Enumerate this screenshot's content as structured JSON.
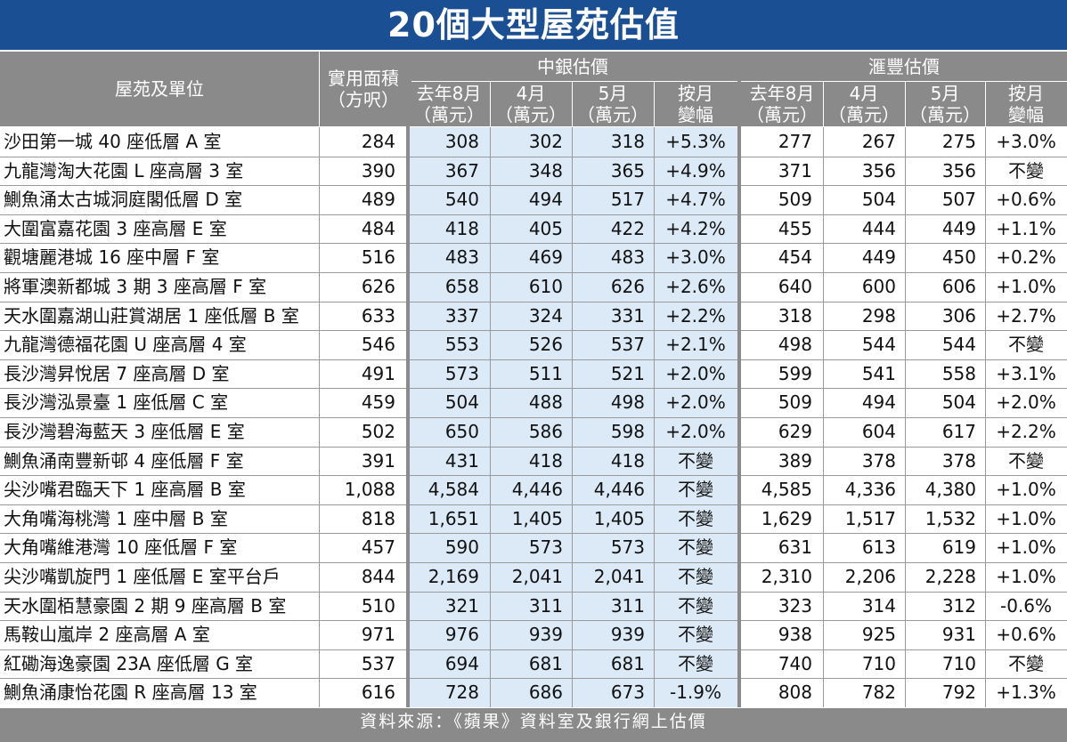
{
  "title": "20個大型屋苑估值",
  "headers": {
    "estate": "屋苑及單位",
    "area_line1": "實用面積",
    "area_line2": "（方呎）",
    "boc_group": "中銀估價",
    "hsbc_group": "滙豐估價",
    "sub": [
      {
        "l1": "去年8月",
        "l2": "（萬元）"
      },
      {
        "l1": "4月",
        "l2": "（萬元）"
      },
      {
        "l1": "5月",
        "l2": "（萬元）"
      },
      {
        "l1": "按月",
        "l2": "變幅"
      },
      {
        "l1": "去年8月",
        "l2": "（萬元）"
      },
      {
        "l1": "4月",
        "l2": "（萬元）"
      },
      {
        "l1": "5月",
        "l2": "（萬元）"
      },
      {
        "l1": "按月",
        "l2": "變幅"
      }
    ]
  },
  "rows": [
    {
      "name": "沙田第一城 40 座低層 A 室",
      "area": "284",
      "boc_aug": "308",
      "boc_apr": "302",
      "boc_may": "318",
      "boc_chg": "+5.3%",
      "hsbc_aug": "277",
      "hsbc_apr": "267",
      "hsbc_may": "275",
      "hsbc_chg": "+3.0%"
    },
    {
      "name": "九龍灣淘大花園 L 座高層 3 室",
      "area": "390",
      "boc_aug": "367",
      "boc_apr": "348",
      "boc_may": "365",
      "boc_chg": "+4.9%",
      "hsbc_aug": "371",
      "hsbc_apr": "356",
      "hsbc_may": "356",
      "hsbc_chg": "不變"
    },
    {
      "name": "鰂魚涌太古城洞庭閣低層 D 室",
      "area": "489",
      "boc_aug": "540",
      "boc_apr": "494",
      "boc_may": "517",
      "boc_chg": "+4.7%",
      "hsbc_aug": "509",
      "hsbc_apr": "504",
      "hsbc_may": "507",
      "hsbc_chg": "+0.6%"
    },
    {
      "name": "大圍富嘉花園 3 座高層 E 室",
      "area": "484",
      "boc_aug": "418",
      "boc_apr": "405",
      "boc_may": "422",
      "boc_chg": "+4.2%",
      "hsbc_aug": "455",
      "hsbc_apr": "444",
      "hsbc_may": "449",
      "hsbc_chg": "+1.1%"
    },
    {
      "name": "觀塘麗港城 16 座中層 F 室",
      "area": "516",
      "boc_aug": "483",
      "boc_apr": "469",
      "boc_may": "483",
      "boc_chg": "+3.0%",
      "hsbc_aug": "454",
      "hsbc_apr": "449",
      "hsbc_may": "450",
      "hsbc_chg": "+0.2%"
    },
    {
      "name": "將軍澳新都城 3 期 3 座高層 F 室",
      "area": "626",
      "boc_aug": "658",
      "boc_apr": "610",
      "boc_may": "626",
      "boc_chg": "+2.6%",
      "hsbc_aug": "640",
      "hsbc_apr": "600",
      "hsbc_may": "606",
      "hsbc_chg": "+1.0%"
    },
    {
      "name": "天水圍嘉湖山莊賞湖居 1 座低層 B 室",
      "area": "633",
      "boc_aug": "337",
      "boc_apr": "324",
      "boc_may": "331",
      "boc_chg": "+2.2%",
      "hsbc_aug": "318",
      "hsbc_apr": "298",
      "hsbc_may": "306",
      "hsbc_chg": "+2.7%"
    },
    {
      "name": "九龍灣德福花園 U 座高層 4 室",
      "area": "546",
      "boc_aug": "553",
      "boc_apr": "526",
      "boc_may": "537",
      "boc_chg": "+2.1%",
      "hsbc_aug": "498",
      "hsbc_apr": "544",
      "hsbc_may": "544",
      "hsbc_chg": "不變"
    },
    {
      "name": "長沙灣昇悅居 7 座高層 D 室",
      "area": "491",
      "boc_aug": "573",
      "boc_apr": "511",
      "boc_may": "521",
      "boc_chg": "+2.0%",
      "hsbc_aug": "599",
      "hsbc_apr": "541",
      "hsbc_may": "558",
      "hsbc_chg": "+3.1%"
    },
    {
      "name": "長沙灣泓景臺 1 座低層 C 室",
      "area": "459",
      "boc_aug": "504",
      "boc_apr": "488",
      "boc_may": "498",
      "boc_chg": "+2.0%",
      "hsbc_aug": "509",
      "hsbc_apr": "494",
      "hsbc_may": "504",
      "hsbc_chg": "+2.0%"
    },
    {
      "name": "長沙灣碧海藍天 3 座低層 E 室",
      "area": "502",
      "boc_aug": "650",
      "boc_apr": "586",
      "boc_may": "598",
      "boc_chg": "+2.0%",
      "hsbc_aug": "629",
      "hsbc_apr": "604",
      "hsbc_may": "617",
      "hsbc_chg": "+2.2%"
    },
    {
      "name": "鰂魚涌南豐新邨 4 座低層 F 室",
      "area": "391",
      "boc_aug": "431",
      "boc_apr": "418",
      "boc_may": "418",
      "boc_chg": "不變",
      "hsbc_aug": "389",
      "hsbc_apr": "378",
      "hsbc_may": "378",
      "hsbc_chg": "不變"
    },
    {
      "name": "尖沙嘴君臨天下 1 座高層 B 室",
      "area": "1,088",
      "boc_aug": "4,584",
      "boc_apr": "4,446",
      "boc_may": "4,446",
      "boc_chg": "不變",
      "hsbc_aug": "4,585",
      "hsbc_apr": "4,336",
      "hsbc_may": "4,380",
      "hsbc_chg": "+1.0%"
    },
    {
      "name": "大角嘴海桃灣 1 座中層 B 室",
      "area": "818",
      "boc_aug": "1,651",
      "boc_apr": "1,405",
      "boc_may": "1,405",
      "boc_chg": "不變",
      "hsbc_aug": "1,629",
      "hsbc_apr": "1,517",
      "hsbc_may": "1,532",
      "hsbc_chg": "+1.0%"
    },
    {
      "name": "大角嘴維港灣 10 座低層 F 室",
      "area": "457",
      "boc_aug": "590",
      "boc_apr": "573",
      "boc_may": "573",
      "boc_chg": "不變",
      "hsbc_aug": "631",
      "hsbc_apr": "613",
      "hsbc_may": "619",
      "hsbc_chg": "+1.0%"
    },
    {
      "name": "尖沙嘴凱旋門 1 座低層 E 室平台戶",
      "area": "844",
      "boc_aug": "2,169",
      "boc_apr": "2,041",
      "boc_may": "2,041",
      "boc_chg": "不變",
      "hsbc_aug": "2,310",
      "hsbc_apr": "2,206",
      "hsbc_may": "2,228",
      "hsbc_chg": "+1.0%"
    },
    {
      "name": "天水圍栢慧豪園 2 期 9 座高層 B 室",
      "area": "510",
      "boc_aug": "321",
      "boc_apr": "311",
      "boc_may": "311",
      "boc_chg": "不變",
      "hsbc_aug": "323",
      "hsbc_apr": "314",
      "hsbc_may": "312",
      "hsbc_chg": "-0.6%"
    },
    {
      "name": "馬鞍山嵐岸 2 座高層 A 室",
      "area": "971",
      "boc_aug": "976",
      "boc_apr": "939",
      "boc_may": "939",
      "boc_chg": "不變",
      "hsbc_aug": "938",
      "hsbc_apr": "925",
      "hsbc_may": "931",
      "hsbc_chg": "+0.6%"
    },
    {
      "name": "紅磡海逸豪園 23A 座低層 G 室",
      "area": "537",
      "boc_aug": "694",
      "boc_apr": "681",
      "boc_may": "681",
      "boc_chg": "不變",
      "hsbc_aug": "740",
      "hsbc_apr": "710",
      "hsbc_may": "710",
      "hsbc_chg": "不變"
    },
    {
      "name": "鰂魚涌康怡花園 R 座高層 13 室",
      "area": "616",
      "boc_aug": "728",
      "boc_apr": "686",
      "boc_may": "673",
      "boc_chg": "-1.9%",
      "hsbc_aug": "808",
      "hsbc_apr": "782",
      "hsbc_may": "792",
      "hsbc_chg": "+1.3%"
    }
  ],
  "footer": "資料來源：《蘋果》資料室及銀行網上估價",
  "colors": {
    "title_bg": "#1a4f94",
    "header_bg": "#8a8a8a",
    "boc_bg": "#dceaf7"
  }
}
